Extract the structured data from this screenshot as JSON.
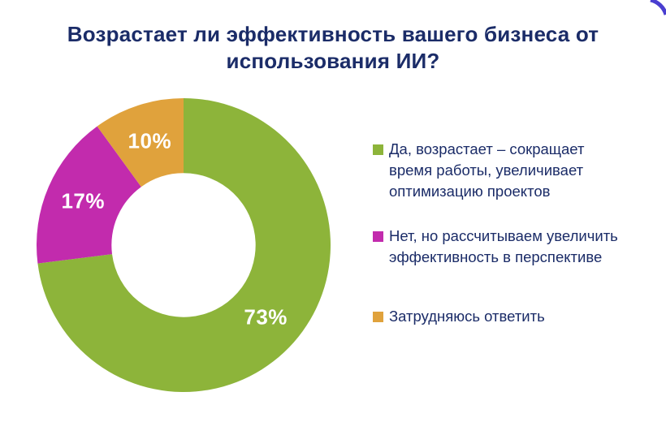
{
  "theme": {
    "title_color": "#1B2C68",
    "text_color": "#1B2C68",
    "background": "#FFFFFF",
    "decor_arc_color": "#4A3ED0",
    "value_label_color": "#FFFFFF"
  },
  "title": {
    "text": "Возрастает ли эффективность вашего бизнеса от\nиспользования ИИ?"
  },
  "chart_data": {
    "type": "pie",
    "subtype": "donut",
    "title": "Возрастает ли эффективность вашего бизнеса от использования ИИ?",
    "units": "%",
    "categories": [
      "Да, возрастает – сокращает время работы, увеличивает оптимизацию проектов",
      "Нет, но рассчитываем увеличить эффективность в перспективе",
      "Затрудняюсь ответить"
    ],
    "values": [
      73,
      17,
      10
    ],
    "slices": [
      {
        "label": "Да, возрастает – сокращает время работы, увеличивает оптимизацию проектов",
        "value": 73,
        "display": "73%",
        "color": "#8DB43A"
      },
      {
        "label": "Нет, но рассчитываем увеличить эффективность в перспективе",
        "value": 17,
        "display": "17%",
        "color": "#C22BAD"
      },
      {
        "label": "Затрудняюсь ответить",
        "value": 10,
        "display": "10%",
        "color": "#E0A23C"
      }
    ],
    "start_angle_deg": 0,
    "direction": "clockwise",
    "inner_radius_ratio": 0.49,
    "value_label_radius_ratio": 0.745,
    "legend_position": "right",
    "grid": false
  },
  "legend": {
    "items": [
      {
        "text": "Да, возрастает – сокращает\nвремя работы, увеличивает\nоптимизацию проектов"
      },
      {
        "text": "Нет, но рассчитываем увеличить\nэффективность в перспективе"
      },
      {
        "text": "Затрудняюсь ответить"
      }
    ]
  }
}
